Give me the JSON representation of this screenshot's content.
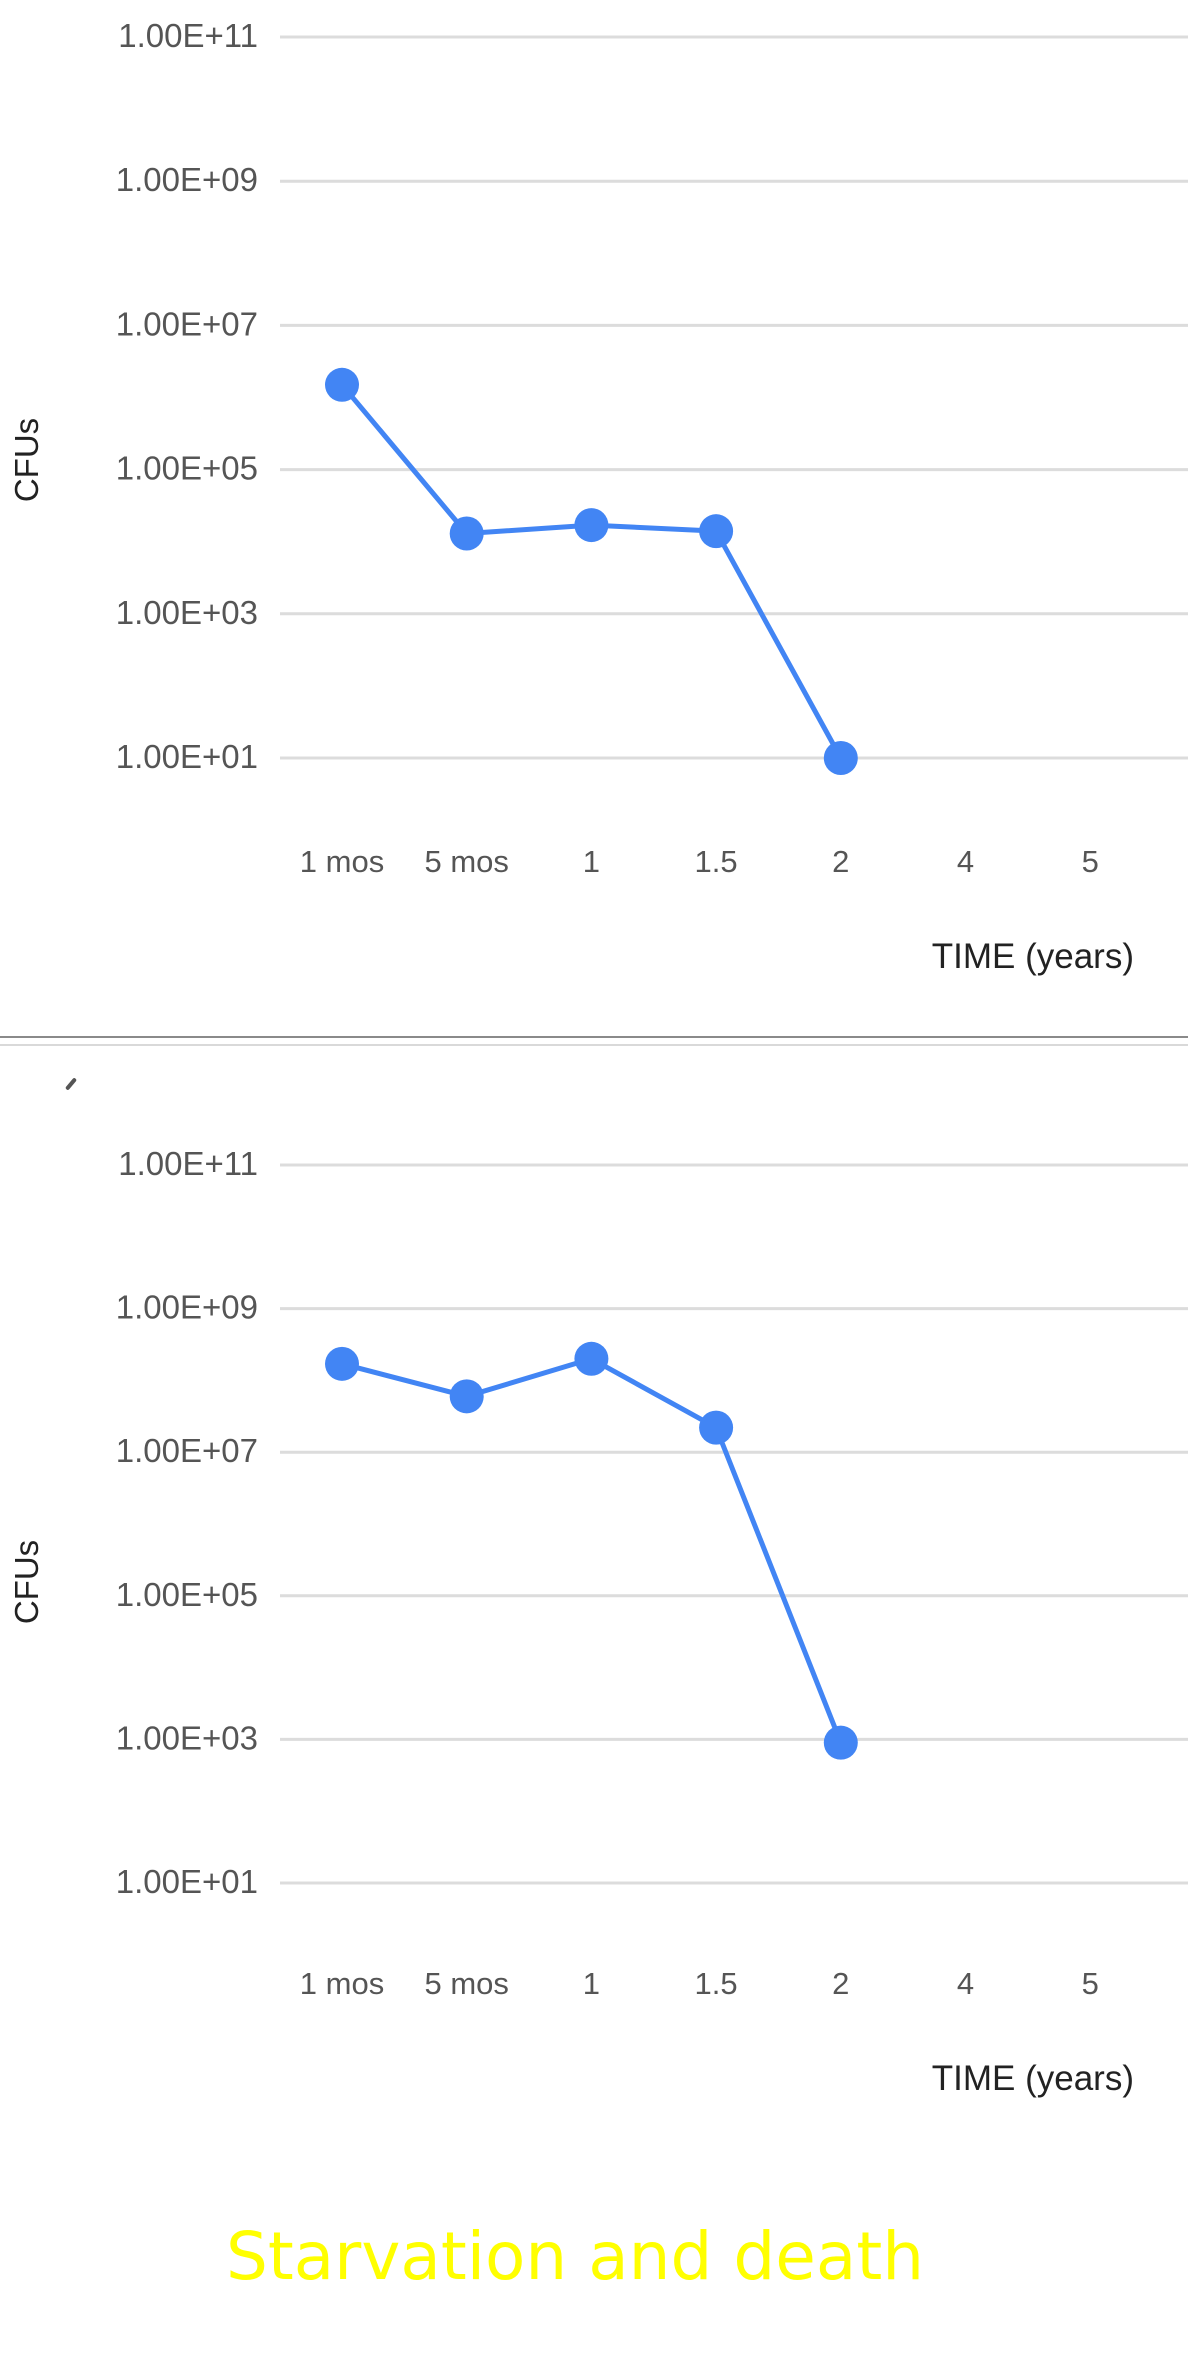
{
  "chart_data": [
    {
      "type": "line",
      "title": "",
      "xlabel": "TIME (years)",
      "ylabel": "CFUs",
      "y_scale": "log",
      "ylim": [
        10,
        100000000000
      ],
      "yticks": [
        {
          "value": 100000000000,
          "label": "1.00E+11"
        },
        {
          "value": 1000000000,
          "label": "1.00E+09"
        },
        {
          "value": 10000000,
          "label": "1.00E+07"
        },
        {
          "value": 100000,
          "label": "1.00E+05"
        },
        {
          "value": 1000,
          "label": "1.00E+03"
        },
        {
          "value": 10,
          "label": "1.00E+01"
        }
      ],
      "categories": [
        "1 mos",
        "5 mos",
        "1",
        "1.5",
        "2",
        "4",
        "5"
      ],
      "grid": true,
      "color": "#4285f4",
      "series": [
        {
          "values": [
            1500000,
            13000,
            17000,
            14000,
            10,
            null,
            null
          ]
        }
      ]
    },
    {
      "type": "line",
      "title": "",
      "xlabel": "TIME (years)",
      "ylabel": "CFUs",
      "y_scale": "log",
      "ylim": [
        10,
        100000000000
      ],
      "yticks": [
        {
          "value": 100000000000,
          "label": "1.00E+11"
        },
        {
          "value": 1000000000,
          "label": "1.00E+09"
        },
        {
          "value": 10000000,
          "label": "1.00E+07"
        },
        {
          "value": 100000,
          "label": "1.00E+05"
        },
        {
          "value": 1000,
          "label": "1.00E+03"
        },
        {
          "value": 10,
          "label": "1.00E+01"
        }
      ],
      "categories": [
        "1 mos",
        "5 mos",
        "1",
        "1.5",
        "2",
        "4",
        "5"
      ],
      "grid": true,
      "color": "#4285f4",
      "series": [
        {
          "values": [
            170000000,
            60000000,
            200000000,
            22000000,
            900,
            null,
            null
          ]
        }
      ]
    }
  ],
  "caption": "Starvation and death",
  "caption_color": "#ffff00"
}
